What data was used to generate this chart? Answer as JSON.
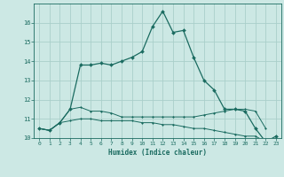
{
  "x": [
    0,
    1,
    2,
    3,
    4,
    5,
    6,
    7,
    8,
    9,
    10,
    11,
    12,
    13,
    14,
    15,
    16,
    17,
    18,
    19,
    20,
    21,
    22,
    23
  ],
  "line1": [
    10.5,
    10.4,
    10.8,
    11.5,
    13.8,
    13.8,
    13.9,
    13.8,
    14.0,
    14.2,
    14.5,
    15.8,
    16.6,
    15.5,
    15.6,
    14.2,
    13.0,
    12.5,
    11.5,
    11.5,
    11.4,
    10.5,
    9.8,
    10.1
  ],
  "line2": [
    10.5,
    10.4,
    10.8,
    11.5,
    11.6,
    11.4,
    11.4,
    11.3,
    11.1,
    11.1,
    11.1,
    11.1,
    11.1,
    11.1,
    11.1,
    11.1,
    11.2,
    11.3,
    11.4,
    11.5,
    11.5,
    11.4,
    10.5,
    null
  ],
  "line3": [
    10.5,
    10.4,
    10.8,
    10.9,
    11.0,
    11.0,
    10.9,
    10.9,
    10.9,
    10.9,
    10.8,
    10.8,
    10.7,
    10.7,
    10.6,
    10.5,
    10.5,
    10.4,
    10.3,
    10.2,
    10.1,
    10.1,
    9.8,
    null
  ],
  "bg_color": "#cce8e4",
  "grid_color": "#aacfca",
  "line_color": "#1a6b60",
  "xlabel": "Humidex (Indice chaleur)",
  "ylim": [
    10,
    17
  ],
  "xlim": [
    -0.5,
    23.5
  ],
  "yticks": [
    10,
    11,
    12,
    13,
    14,
    15,
    16
  ],
  "xticks": [
    0,
    1,
    2,
    3,
    4,
    5,
    6,
    7,
    8,
    9,
    10,
    11,
    12,
    13,
    14,
    15,
    16,
    17,
    18,
    19,
    20,
    21,
    22,
    23
  ]
}
